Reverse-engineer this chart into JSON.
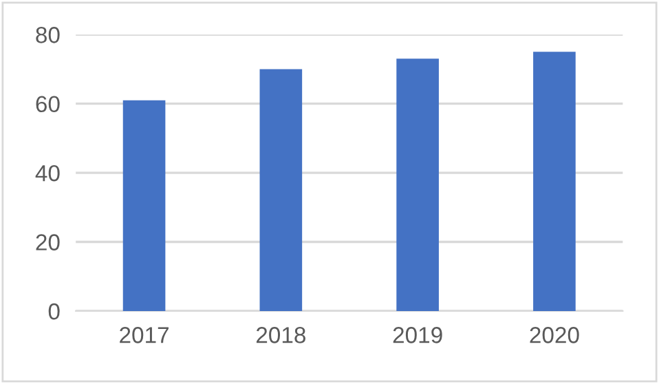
{
  "chart_data": {
    "type": "bar",
    "categories": [
      "2017",
      "2018",
      "2019",
      "2020"
    ],
    "values": [
      61,
      70,
      73,
      75
    ],
    "color": "#4472c4",
    "ylim": [
      0,
      80
    ],
    "yticks": [
      0,
      20,
      40,
      60,
      80
    ],
    "grid": "y"
  }
}
